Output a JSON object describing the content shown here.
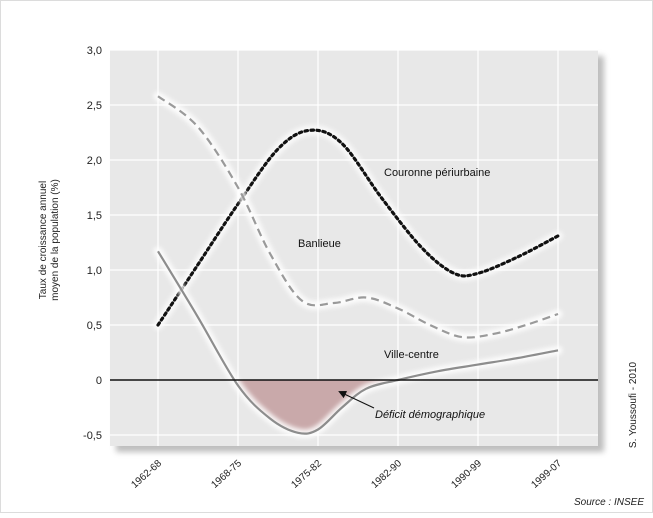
{
  "chart_data": {
    "type": "line",
    "categories": [
      "1962-68",
      "1968-75",
      "1975-82",
      "1982-90",
      "1990-99",
      "1999-07"
    ],
    "ylabel": "Taux de croissance annuel moyen de la population (%)",
    "ylim": [
      -0.6,
      3.0
    ],
    "yticks": [
      -0.5,
      0,
      0.5,
      1.0,
      1.5,
      2.0,
      2.5,
      3.0
    ],
    "ytick_labels": [
      "-0,5",
      "0",
      "0,5",
      "1,0",
      "1,5",
      "2,0",
      "2,5",
      "3,0"
    ],
    "grid": true,
    "series": [
      {
        "name": "Couronne périurbaine",
        "style": "dotted",
        "color": "#111111",
        "points": [
          [
            0,
            0.5
          ],
          [
            0.5,
            1.05
          ],
          [
            1,
            1.6
          ],
          [
            1.5,
            2.1
          ],
          [
            1.9,
            2.27
          ],
          [
            2.3,
            2.15
          ],
          [
            2.8,
            1.65
          ],
          [
            3.3,
            1.2
          ],
          [
            3.7,
            0.97
          ],
          [
            4,
            0.97
          ],
          [
            4.5,
            1.12
          ],
          [
            5,
            1.31
          ]
        ]
      },
      {
        "name": "Banlieue",
        "style": "dashed",
        "color": "#9a9a9a",
        "points": [
          [
            0,
            2.58
          ],
          [
            0.5,
            2.3
          ],
          [
            1,
            1.75
          ],
          [
            1.4,
            1.15
          ],
          [
            1.8,
            0.72
          ],
          [
            2.2,
            0.7
          ],
          [
            2.6,
            0.75
          ],
          [
            3,
            0.65
          ],
          [
            3.4,
            0.5
          ],
          [
            3.8,
            0.39
          ],
          [
            4.2,
            0.42
          ],
          [
            4.6,
            0.5
          ],
          [
            5,
            0.6
          ]
        ]
      },
      {
        "name": "Ville-centre",
        "style": "solid",
        "color": "#8d8d8d",
        "points": [
          [
            0,
            1.17
          ],
          [
            0.5,
            0.57
          ],
          [
            1,
            -0.05
          ],
          [
            1.4,
            -0.35
          ],
          [
            1.75,
            -0.48
          ],
          [
            2,
            -0.45
          ],
          [
            2.3,
            -0.25
          ],
          [
            2.6,
            -0.08
          ],
          [
            3,
            0
          ],
          [
            3.5,
            0.08
          ],
          [
            4,
            0.14
          ],
          [
            4.5,
            0.2
          ],
          [
            5,
            0.27
          ]
        ]
      }
    ],
    "annotations": [
      {
        "text": "Couronne périurbaine"
      },
      {
        "text": "Banlieue"
      },
      {
        "text": "Ville-centre"
      },
      {
        "text": "Déficit démographique"
      }
    ],
    "deficit_fill_color": "#c9a9aa",
    "credit": "S. Youssoufi - 2010",
    "source": "Source : INSEE"
  }
}
